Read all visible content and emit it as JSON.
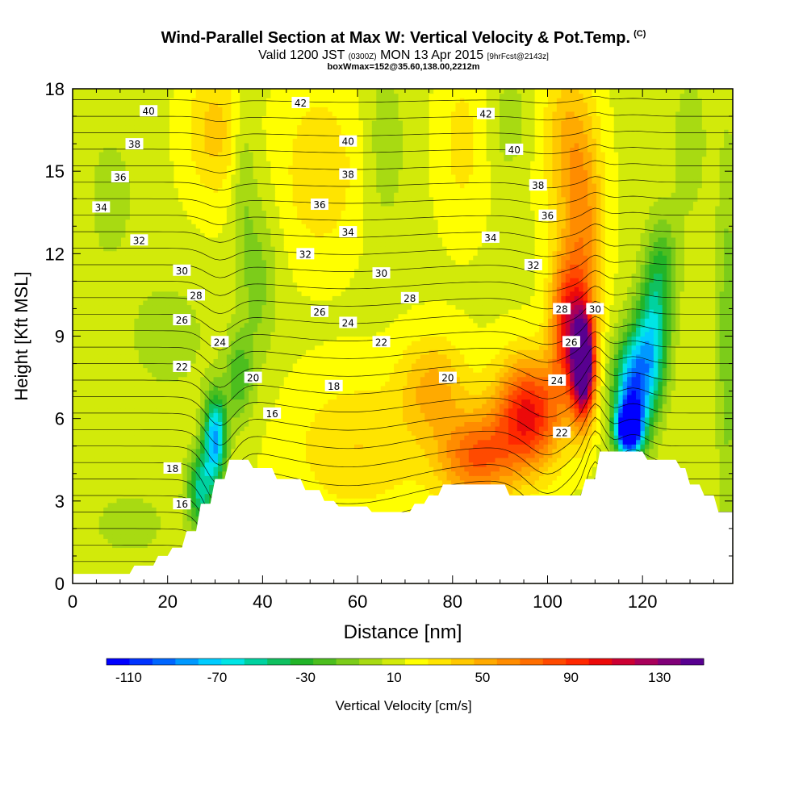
{
  "header": {
    "title": "Wind-Parallel Section at Max W: Vertical Velocity & Pot.Temp.",
    "title_tag": "(C)",
    "valid_prefix": "Valid 1200 JST",
    "valid_utc": "(0300Z)",
    "valid_date": "MON 13 Apr 2015",
    "fcst": "[9hrFcst@2143z]",
    "box_info": "boxWmax=152@35.60,138.00,2212m"
  },
  "chart_data": {
    "type": "heatmap",
    "xlabel": "Distance [nm]",
    "ylabel": "Height [Kft MSL]",
    "xlim": [
      0,
      139
    ],
    "ylim": [
      0,
      18
    ],
    "x_ticks": [
      0,
      20,
      40,
      60,
      80,
      100,
      120
    ],
    "y_ticks": [
      0,
      3,
      6,
      9,
      12,
      15,
      18
    ],
    "colorbar": {
      "label": "Vertical Velocity [cm/s]",
      "min": -120,
      "max": 150,
      "step": 10,
      "tick_values": [
        -110,
        -70,
        -30,
        10,
        50,
        90,
        130
      ],
      "colors": [
        "#0000ff",
        "#0033ff",
        "#0066ff",
        "#0099ff",
        "#00ccff",
        "#00e5e5",
        "#00d2a0",
        "#10c060",
        "#22b428",
        "#4cbe1e",
        "#7ccc1a",
        "#a8da12",
        "#d2ea0a",
        "#ffff00",
        "#ffe400",
        "#ffc800",
        "#ffaa00",
        "#ff8c00",
        "#ff6e00",
        "#ff4a00",
        "#ff2800",
        "#ec0a0a",
        "#cc0033",
        "#a8005a",
        "#800078",
        "#580090"
      ]
    },
    "terrain_profile": [
      [
        0,
        0.35
      ],
      [
        12,
        0.35
      ],
      [
        13,
        0.65
      ],
      [
        17,
        0.65
      ],
      [
        18,
        1.0
      ],
      [
        20,
        1.0
      ],
      [
        21,
        1.3
      ],
      [
        23,
        1.3
      ],
      [
        24,
        1.9
      ],
      [
        26,
        1.9
      ],
      [
        27,
        2.9
      ],
      [
        29,
        2.9
      ],
      [
        30,
        3.8
      ],
      [
        32,
        3.8
      ],
      [
        33,
        4.5
      ],
      [
        37,
        4.5
      ],
      [
        38,
        4.2
      ],
      [
        42,
        4.2
      ],
      [
        43,
        3.8
      ],
      [
        48,
        3.8
      ],
      [
        49,
        3.4
      ],
      [
        52,
        3.4
      ],
      [
        53,
        3.0
      ],
      [
        55,
        3.0
      ],
      [
        56,
        2.8
      ],
      [
        62,
        2.8
      ],
      [
        63,
        2.6
      ],
      [
        71,
        2.6
      ],
      [
        72,
        2.9
      ],
      [
        74,
        2.9
      ],
      [
        75,
        3.2
      ],
      [
        77,
        3.2
      ],
      [
        78,
        3.6
      ],
      [
        91,
        3.6
      ],
      [
        92,
        3.2
      ],
      [
        107,
        3.2
      ],
      [
        108,
        3.8
      ],
      [
        110,
        3.8
      ],
      [
        111,
        4.8
      ],
      [
        120,
        4.8
      ],
      [
        121,
        4.5
      ],
      [
        127,
        4.5
      ],
      [
        128,
        4.2
      ],
      [
        129,
        4.2
      ],
      [
        130,
        3.6
      ],
      [
        132,
        3.6
      ],
      [
        133,
        3.2
      ],
      [
        135,
        3.2
      ],
      [
        136,
        2.6
      ],
      [
        139,
        2.6
      ]
    ],
    "contour_labels": [
      {
        "text": "40",
        "x": 16,
        "y": 17.2
      },
      {
        "text": "42",
        "x": 48,
        "y": 17.5
      },
      {
        "text": "42",
        "x": 87,
        "y": 17.1
      },
      {
        "text": "38",
        "x": 13,
        "y": 16.0
      },
      {
        "text": "40",
        "x": 58,
        "y": 16.1
      },
      {
        "text": "40",
        "x": 93,
        "y": 15.8
      },
      {
        "text": "36",
        "x": 10,
        "y": 14.8
      },
      {
        "text": "38",
        "x": 58,
        "y": 14.9
      },
      {
        "text": "38",
        "x": 98,
        "y": 14.5
      },
      {
        "text": "34",
        "x": 6,
        "y": 13.7
      },
      {
        "text": "36",
        "x": 52,
        "y": 13.8
      },
      {
        "text": "36",
        "x": 100,
        "y": 13.4
      },
      {
        "text": "32",
        "x": 14,
        "y": 12.5
      },
      {
        "text": "34",
        "x": 58,
        "y": 12.8
      },
      {
        "text": "34",
        "x": 88,
        "y": 12.6
      },
      {
        "text": "32",
        "x": 49,
        "y": 12.0
      },
      {
        "text": "32",
        "x": 97,
        "y": 11.6
      },
      {
        "text": "30",
        "x": 23,
        "y": 11.4
      },
      {
        "text": "30",
        "x": 65,
        "y": 11.3
      },
      {
        "text": "28",
        "x": 26,
        "y": 10.5
      },
      {
        "text": "28",
        "x": 71,
        "y": 10.4
      },
      {
        "text": "28",
        "x": 103,
        "y": 10.0
      },
      {
        "text": "30",
        "x": 110,
        "y": 10.0
      },
      {
        "text": "26",
        "x": 23,
        "y": 9.6
      },
      {
        "text": "26",
        "x": 52,
        "y": 9.9
      },
      {
        "text": "24",
        "x": 58,
        "y": 9.5
      },
      {
        "text": "26",
        "x": 105,
        "y": 8.8
      },
      {
        "text": "24",
        "x": 31,
        "y": 8.8
      },
      {
        "text": "22",
        "x": 65,
        "y": 8.8
      },
      {
        "text": "22",
        "x": 23,
        "y": 7.9
      },
      {
        "text": "20",
        "x": 38,
        "y": 7.5
      },
      {
        "text": "20",
        "x": 79,
        "y": 7.5
      },
      {
        "text": "24",
        "x": 102,
        "y": 7.4
      },
      {
        "text": "18",
        "x": 55,
        "y": 7.2
      },
      {
        "text": "16",
        "x": 42,
        "y": 6.2
      },
      {
        "text": "22",
        "x": 103,
        "y": 5.5
      },
      {
        "text": "18",
        "x": 21,
        "y": 4.2
      },
      {
        "text": "16",
        "x": 23,
        "y": 2.9
      }
    ]
  }
}
